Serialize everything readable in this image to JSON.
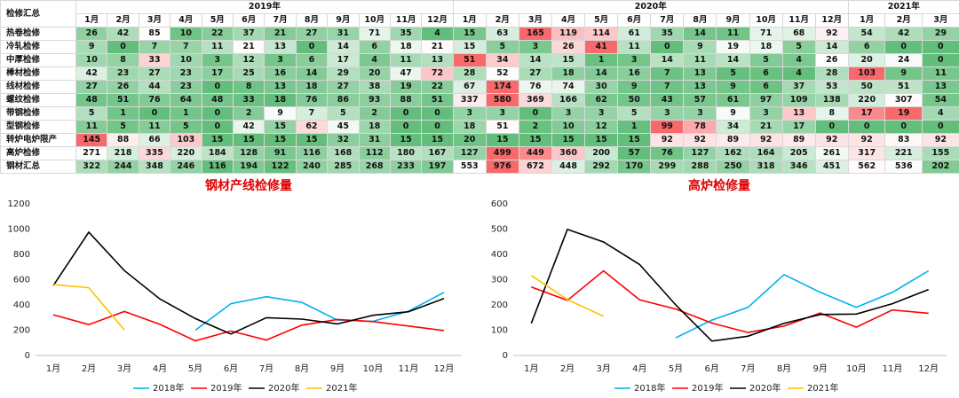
{
  "table": {
    "title": "检修汇总",
    "years": [
      "2019年",
      "2020年",
      "2021年"
    ],
    "months": [
      "1月",
      "2月",
      "3月",
      "4月",
      "5月",
      "6月",
      "7月",
      "8月",
      "9月",
      "10月",
      "11月",
      "12月",
      "1月",
      "2月",
      "3月",
      "4月",
      "5月",
      "6月",
      "7月",
      "8月",
      "9月",
      "10月",
      "11月",
      "12月",
      "1月",
      "2月",
      "3月"
    ],
    "rows": [
      {
        "label": "热卷检修",
        "values": [
          26,
          42,
          85,
          10,
          22,
          37,
          21,
          27,
          31,
          71,
          35,
          4,
          15,
          63,
          165,
          119,
          114,
          61,
          35,
          14,
          11,
          71,
          68,
          92,
          54,
          42,
          29
        ]
      },
      {
        "label": "冷轧检修",
        "values": [
          9,
          0,
          7,
          7,
          11,
          21,
          13,
          0,
          14,
          6,
          18,
          21,
          15,
          5,
          3,
          26,
          41,
          11,
          0,
          9,
          19,
          18,
          5,
          14,
          6,
          0,
          0
        ]
      },
      {
        "label": "中厚检修",
        "values": [
          10,
          8,
          33,
          10,
          3,
          12,
          3,
          6,
          17,
          4,
          11,
          13,
          51,
          34,
          14,
          15,
          1,
          3,
          14,
          11,
          14,
          5,
          4,
          26,
          20,
          24,
          0
        ]
      },
      {
        "label": "棒材检修",
        "values": [
          42,
          23,
          27,
          23,
          17,
          25,
          16,
          14,
          29,
          20,
          47,
          72,
          28,
          52,
          27,
          18,
          14,
          16,
          7,
          13,
          5,
          6,
          4,
          28,
          103,
          9,
          11
        ]
      },
      {
        "label": "线材检修",
        "values": [
          27,
          26,
          44,
          23,
          0,
          8,
          13,
          18,
          27,
          38,
          19,
          22,
          67,
          174,
          76,
          74,
          30,
          9,
          7,
          13,
          9,
          6,
          37,
          53,
          50,
          51,
          13
        ]
      },
      {
        "label": "螺纹检修",
        "values": [
          48,
          51,
          76,
          64,
          48,
          33,
          18,
          76,
          86,
          93,
          88,
          51,
          337,
          580,
          369,
          166,
          62,
          50,
          43,
          57,
          61,
          97,
          109,
          138,
          220,
          307,
          54
        ]
      },
      {
        "label": "带钢检修",
        "values": [
          5,
          1,
          0,
          1,
          0,
          2,
          9,
          7,
          5,
          2,
          0,
          0,
          3,
          3,
          0,
          3,
          3,
          5,
          3,
          3,
          9,
          3,
          13,
          8,
          17,
          19,
          4
        ]
      },
      {
        "label": "型钢检修",
        "values": [
          11,
          5,
          11,
          5,
          0,
          42,
          15,
          62,
          45,
          18,
          0,
          0,
          18,
          51,
          2,
          10,
          12,
          1,
          99,
          78,
          34,
          21,
          17,
          0,
          0,
          0,
          0
        ]
      },
      {
        "label": "转炉电炉限产",
        "values": [
          145,
          88,
          66,
          103,
          15,
          15,
          15,
          15,
          32,
          31,
          15,
          15,
          20,
          15,
          15,
          15,
          15,
          15,
          92,
          92,
          89,
          92,
          89,
          92,
          92,
          83,
          92
        ]
      },
      {
        "label": "高炉检修",
        "values": [
          271,
          218,
          335,
          220,
          184,
          128,
          91,
          116,
          168,
          112,
          180,
          167,
          127,
          499,
          449,
          360,
          200,
          57,
          76,
          127,
          162,
          164,
          205,
          261,
          317,
          221,
          155
        ]
      },
      {
        "label": "钢材汇总",
        "values": [
          322,
          244,
          348,
          246,
          116,
          194,
          122,
          240,
          285,
          268,
          233,
          197,
          553,
          976,
          672,
          448,
          292,
          170,
          299,
          288,
          250,
          318,
          346,
          451,
          562,
          536,
          202
        ]
      }
    ]
  },
  "chart_data": [
    {
      "type": "line",
      "title": "钢材产线检修量",
      "categories": [
        "1月",
        "2月",
        "3月",
        "4月",
        "5月",
        "6月",
        "7月",
        "8月",
        "9月",
        "10月",
        "11月",
        "12月"
      ],
      "ylim": [
        0,
        1200
      ],
      "yticks": [
        0,
        200,
        400,
        600,
        800,
        1000,
        1200
      ],
      "series": [
        {
          "name": "2018年",
          "color": "#00b0f0",
          "values": [
            null,
            null,
            null,
            null,
            200,
            410,
            465,
            420,
            280,
            270,
            350,
            500
          ]
        },
        {
          "name": "2019年",
          "color": "#ff0000",
          "values": [
            322,
            244,
            348,
            246,
            116,
            194,
            122,
            240,
            285,
            268,
            233,
            197
          ]
        },
        {
          "name": "2020年",
          "color": "#000000",
          "values": [
            553,
            976,
            672,
            448,
            292,
            170,
            299,
            288,
            250,
            318,
            346,
            451
          ]
        },
        {
          "name": "2021年",
          "color": "#ffc000",
          "values": [
            562,
            536,
            202,
            null,
            null,
            null,
            null,
            null,
            null,
            null,
            null,
            null
          ]
        }
      ]
    },
    {
      "type": "line",
      "title": "高炉检修量",
      "categories": [
        "1月",
        "2月",
        "3月",
        "4月",
        "5月",
        "6月",
        "7月",
        "8月",
        "9月",
        "10月",
        "11月",
        "12月"
      ],
      "ylim": [
        0,
        600
      ],
      "yticks": [
        0,
        100,
        200,
        300,
        400,
        500,
        600
      ],
      "series": [
        {
          "name": "2018年",
          "color": "#00b0f0",
          "values": [
            null,
            null,
            null,
            null,
            70,
            140,
            190,
            320,
            250,
            190,
            250,
            335
          ]
        },
        {
          "name": "2019年",
          "color": "#ff0000",
          "values": [
            271,
            218,
            335,
            220,
            184,
            128,
            91,
            116,
            168,
            112,
            180,
            167
          ]
        },
        {
          "name": "2020年",
          "color": "#000000",
          "values": [
            127,
            499,
            449,
            360,
            200,
            57,
            76,
            127,
            162,
            164,
            205,
            261
          ]
        },
        {
          "name": "2021年",
          "color": "#ffc000",
          "values": [
            317,
            221,
            155,
            null,
            null,
            null,
            null,
            null,
            null,
            null,
            null,
            null
          ]
        }
      ]
    }
  ]
}
